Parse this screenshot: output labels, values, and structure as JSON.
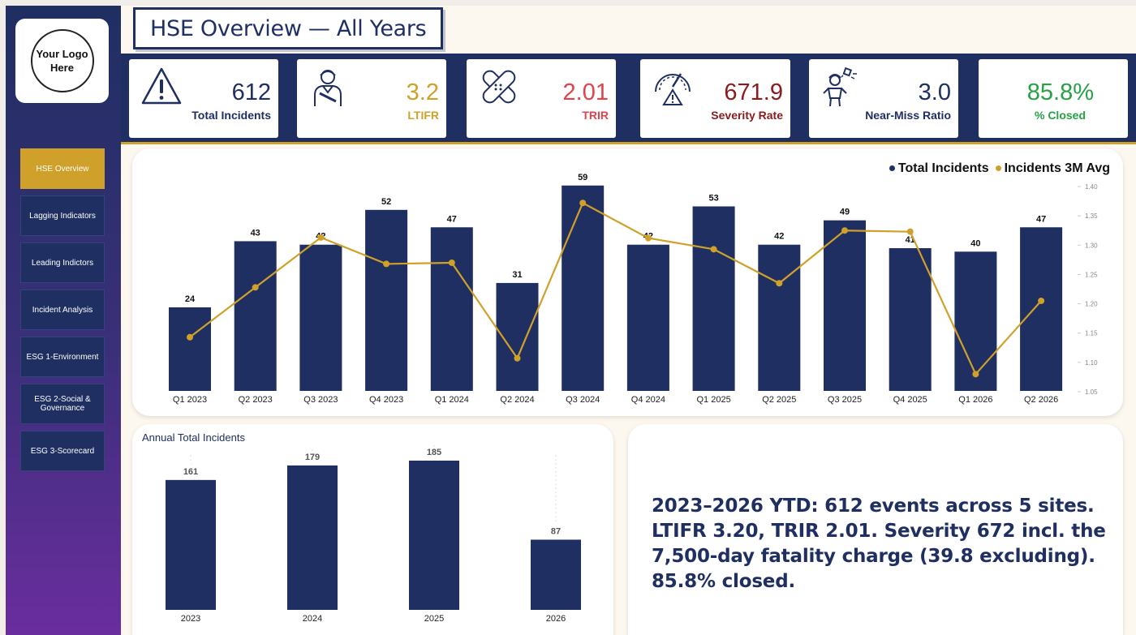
{
  "sidebar": {
    "logo_text": "Your Logo Here",
    "items": [
      {
        "label": "HSE Overview",
        "active": true
      },
      {
        "label": "Lagging Indicators",
        "active": false
      },
      {
        "label": "Leading Indictors",
        "active": false
      },
      {
        "label": "Incident Analysis",
        "active": false
      },
      {
        "label": "ESG 1-Environment",
        "active": false
      },
      {
        "label": "ESG 2-Social & Governance",
        "active": false
      },
      {
        "label": "ESG 3-Scorecard",
        "active": false
      }
    ]
  },
  "header": {
    "title": "HSE Overview — All Years"
  },
  "kpis": [
    {
      "value": "612",
      "label": "Total Incidents",
      "value_color": "#1f2f62",
      "label_color": "#1f2f62",
      "icon": "warning-icon"
    },
    {
      "value": "3.2",
      "label": "LTIFR",
      "value_color": "#cfa12a",
      "label_color": "#cfa12a",
      "icon": "injured-worker-icon"
    },
    {
      "value": "2.01",
      "label": "TRIR",
      "value_color": "#e0434d",
      "label_color": "#e0434d",
      "icon": "bandage-icon"
    },
    {
      "value": "671.9",
      "label": "Severity Rate",
      "value_color": "#8a1c20",
      "label_color": "#8a1c20",
      "icon": "gauge-warning-icon"
    },
    {
      "value": "3.0",
      "label": "Near-Miss Ratio",
      "value_color": "#1f2f62",
      "label_color": "#1f2f62",
      "icon": "falling-object-worker-icon"
    },
    {
      "value": "85.8%",
      "label": "% Closed",
      "value_color": "#27a046",
      "label_color": "#27a046",
      "icon": ""
    }
  ],
  "colors": {
    "navy": "#1f2f62",
    "gold": "#cfa12a"
  },
  "chart_data": [
    {
      "type": "bar",
      "title": "",
      "legend_position": "top-right",
      "categories": [
        "Q1 2023",
        "Q2 2023",
        "Q3 2023",
        "Q4 2023",
        "Q1 2024",
        "Q2 2024",
        "Q3 2024",
        "Q4 2024",
        "Q1 2025",
        "Q2 2025",
        "Q3 2025",
        "Q4 2025",
        "Q1 2026",
        "Q2 2026"
      ],
      "series": [
        {
          "name": "Total Incidents",
          "type": "bar",
          "axis": "left",
          "color": "#1f2f62",
          "values": [
            24,
            43,
            42,
            52,
            47,
            31,
            59,
            42,
            53,
            42,
            49,
            41,
            40,
            47
          ]
        },
        {
          "name": "Incidents 3M Avg",
          "type": "line",
          "axis": "right",
          "color": "#cfa12a",
          "values": [
            1.143,
            1.228,
            1.313,
            1.268,
            1.27,
            1.107,
            1.372,
            1.312,
            1.293,
            1.235,
            1.325,
            1.323,
            1.08,
            1.205
          ]
        }
      ],
      "ylim": [
        0,
        65
      ],
      "y2lim": [
        1.05,
        1.4
      ],
      "y2ticks": [
        "1.40",
        "1.35",
        "1.30",
        "1.25",
        "1.20",
        "1.15",
        "1.10",
        "1.05"
      ]
    },
    {
      "type": "bar",
      "title": "Annual Total Incidents",
      "categories": [
        "2023",
        "2024",
        "2025",
        "2026"
      ],
      "values": [
        161,
        179,
        185,
        87
      ],
      "ylim": [
        0,
        190
      ],
      "color": "#1f2f62"
    }
  ],
  "summary": "2023–2026 YTD: 612 events across 5 sites. LTIFR 3.20, TRIR 2.01. Severity 672 incl. the 7,500-day fatality charge (39.8 excluding). 85.8% closed."
}
